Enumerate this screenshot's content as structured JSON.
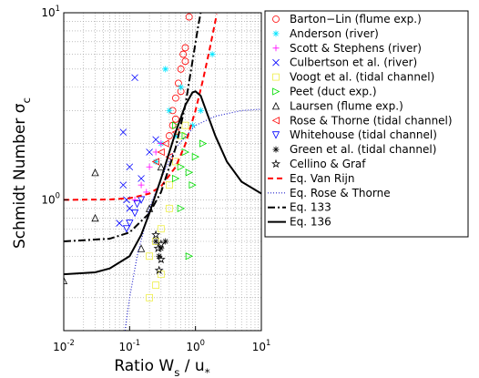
{
  "chart_data": {
    "type": "scatter",
    "xlabel": "Ratio W_s / u_*",
    "ylabel": "Schmidt Number σ_c",
    "xscale": "log",
    "yscale": "log",
    "grid": true,
    "legend": "outside right",
    "xlim": [
      0.01,
      10
    ],
    "ylim": [
      0.2,
      10
    ],
    "xticks": [
      {
        "value": 0.01,
        "label": "10^-2"
      },
      {
        "value": 0.1,
        "label": "10^-1"
      },
      {
        "value": 1,
        "label": "10^0"
      },
      {
        "value": 10,
        "label": "10^1"
      }
    ],
    "yticks": [
      {
        "value": 1,
        "label": "10^0"
      },
      {
        "value": 10,
        "label": "10^1"
      }
    ],
    "xminorticks": [
      0.02,
      0.03,
      0.04,
      0.05,
      0.06,
      0.07,
      0.08,
      0.09,
      0.2,
      0.3,
      0.4,
      0.5,
      0.6,
      0.7,
      0.8,
      0.9,
      2,
      3,
      4,
      5,
      6,
      7,
      8,
      9
    ],
    "yminorticks": [
      0.3,
      0.4,
      0.5,
      0.6,
      0.7,
      0.8,
      0.9,
      2,
      3,
      4,
      5,
      6,
      7,
      8,
      9
    ],
    "series": [
      {
        "name": "Barton−Lin (flume exp.)",
        "color": "#ff0000",
        "marker": "circle",
        "x": [
          0.4,
          0.45,
          0.5,
          0.55,
          0.6,
          0.65,
          0.7,
          0.5,
          0.8,
          0.6,
          0.45,
          0.7
        ],
        "values": [
          2.2,
          3,
          3.5,
          4.2,
          5,
          6,
          6.5,
          2.7,
          9.5,
          3.8,
          2.5,
          5.5
        ]
      },
      {
        "name": "Anderson (river)",
        "color": "#00e5ff",
        "marker": "star",
        "x": [
          0.3,
          0.35,
          0.4,
          0.5,
          0.6,
          0.9,
          1.2,
          1.8,
          0.25
        ],
        "values": [
          2,
          5,
          3,
          2.2,
          4,
          2.5,
          3,
          6,
          1.6
        ]
      },
      {
        "name": "Scott & Stephens (river)",
        "color": "#ff00ff",
        "marker": "plus",
        "x": [
          0.12,
          0.15,
          0.2,
          0.25,
          0.3,
          0.18
        ],
        "values": [
          1,
          1.2,
          1.5,
          1.8,
          2,
          1.1
        ]
      },
      {
        "name": "Culbertson et al. (river)",
        "color": "#0000ff",
        "marker": "x",
        "x": [
          0.08,
          0.1,
          0.12,
          0.08,
          0.1,
          0.15,
          0.2,
          0.09,
          0.07,
          0.25
        ],
        "values": [
          2.3,
          1.5,
          4.5,
          1.2,
          0.9,
          1.3,
          1.8,
          1,
          0.75,
          2.1
        ]
      },
      {
        "name": "Voogt et al. (tidal channel)",
        "color": "#eeee44",
        "marker": "square",
        "x": [
          0.2,
          0.25,
          0.3,
          0.2,
          0.25,
          0.3,
          0.4,
          0.5,
          0.6,
          0.7,
          0.4
        ],
        "values": [
          0.3,
          0.35,
          0.4,
          0.5,
          0.6,
          0.7,
          1.2,
          1.6,
          2.2,
          2.5,
          0.9
        ]
      },
      {
        "name": "Peet (duct exp.)",
        "color": "#00dd00",
        "marker": "triangle-right",
        "x": [
          0.5,
          0.6,
          0.7,
          0.8,
          0.9,
          0.6,
          0.7,
          0.8,
          1,
          1.3,
          0.5
        ],
        "values": [
          1.3,
          1.5,
          1.8,
          1.4,
          1.2,
          0.9,
          2.2,
          0.5,
          1.7,
          2,
          2.5
        ]
      },
      {
        "name": "Laursen (flume exp.)",
        "color": "#000000",
        "marker": "triangle-up",
        "x": [
          0.01,
          0.03,
          0.03,
          0.15,
          0.2,
          0.3
        ],
        "values": [
          0.37,
          0.8,
          1.4,
          0.55,
          0.9,
          1.5
        ]
      },
      {
        "name": "Rose & Thorne (tidal channel)",
        "color": "#ff0000",
        "marker": "triangle-left",
        "x": [
          0.25,
          0.3,
          0.35,
          0.4,
          0.5
        ],
        "values": [
          1.6,
          1.8,
          2,
          1.7,
          2.3
        ]
      },
      {
        "name": "Whitehouse (tidal channel)",
        "color": "#0000ff",
        "marker": "triangle-down",
        "x": [
          0.1,
          0.12,
          0.15,
          0.09,
          0.13
        ],
        "values": [
          0.75,
          0.85,
          1,
          0.7,
          0.95
        ]
      },
      {
        "name": "Green et al. (tidal channel)",
        "color": "#000000",
        "marker": "asterisk",
        "x": [
          0.28,
          0.3,
          0.25,
          0.35
        ],
        "values": [
          0.5,
          0.55,
          0.6,
          0.6
        ]
      },
      {
        "name": "Cellino & Graf",
        "color": "#000000",
        "marker": "pentagram",
        "x": [
          0.28,
          0.3,
          0.27,
          0.25,
          0.3
        ],
        "values": [
          0.42,
          0.48,
          0.55,
          0.65,
          0.58
        ]
      },
      {
        "name": "Eq. Van Rijn",
        "color": "#ff0000",
        "line": "dashed",
        "x": [
          0.01,
          0.05,
          0.1,
          0.2,
          0.3,
          0.5,
          0.7,
          1,
          1.3,
          1.6,
          2,
          2.1
        ],
        "values": [
          1.0002,
          1.005,
          1.02,
          1.08,
          1.18,
          1.5,
          1.98,
          3,
          4.38,
          6.12,
          9,
          9.82
        ]
      },
      {
        "name": "Eq. Rose & Thorne",
        "color": "#2222cc",
        "line": "dotted",
        "x": [
          0.085,
          0.1,
          0.13,
          0.2,
          0.3,
          0.5,
          1,
          2,
          5,
          10
        ],
        "values": [
          0.2,
          0.3,
          0.5,
          0.9,
          1.3,
          1.9,
          2.5,
          2.8,
          3,
          3.05
        ]
      },
      {
        "name": "Eq. 133",
        "color": "#000000",
        "line": "dashdot",
        "x": [
          0.01,
          0.05,
          0.1,
          0.2,
          0.3,
          0.5,
          0.7,
          0.9,
          1.1,
          1.2
        ],
        "values": [
          0.6,
          0.62,
          0.67,
          0.85,
          1.1,
          1.9,
          3.2,
          5.5,
          8.5,
          10
        ]
      },
      {
        "name": "Eq. 136",
        "color": "#000000",
        "line": "solid",
        "x": [
          0.01,
          0.03,
          0.05,
          0.1,
          0.15,
          0.2,
          0.3,
          0.5,
          0.7,
          0.9,
          1,
          1.2,
          1.5,
          2,
          3,
          5,
          10
        ],
        "values": [
          0.4,
          0.41,
          0.43,
          0.5,
          0.65,
          0.85,
          1.3,
          2.3,
          3.2,
          3.75,
          3.8,
          3.6,
          2.9,
          2.2,
          1.6,
          1.25,
          1.08
        ]
      }
    ]
  }
}
